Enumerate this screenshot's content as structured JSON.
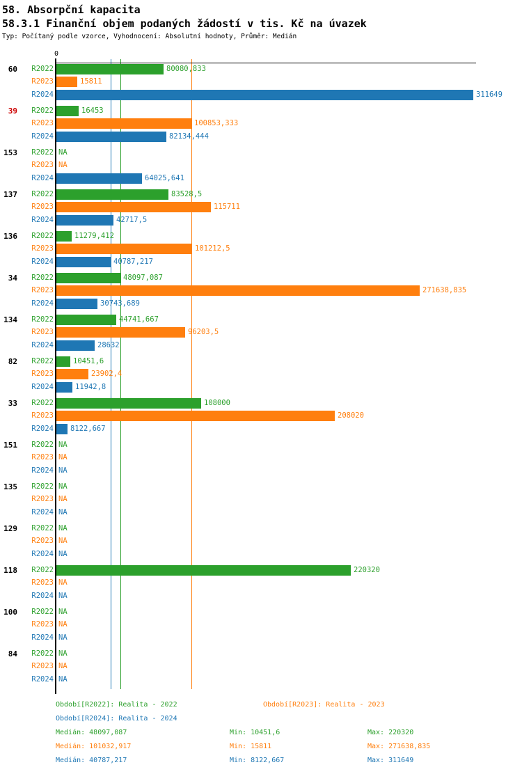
{
  "title": "58. Absorpční kapacita",
  "subtitle": "58.3.1 Finanční objem podaných žádostí v tis. Kč na úvazek",
  "meta": "Typ: Počítaný podle vzorce, Vyhodnocení: Absolutní hodnoty, Průměr: Medián",
  "colors": {
    "r2022": "#2CA02C",
    "r2023": "#FF7F0E",
    "r2024": "#1F77B4",
    "axis": "#000000",
    "highlight_category": "#CC0000",
    "category": "#000000"
  },
  "chart_data": {
    "type": "bar",
    "orientation": "horizontal",
    "x_axis": {
      "origin_label": "0",
      "min_value": 0,
      "max_value": 311649,
      "grid": false
    },
    "series": [
      {
        "name": "R2022",
        "color": "#2CA02C",
        "period_label": "Realita - 2022"
      },
      {
        "name": "R2023",
        "color": "#FF7F0E",
        "period_label": "Realita - 2023"
      },
      {
        "name": "R2024",
        "color": "#1F77B4",
        "period_label": "Realita - 2024"
      }
    ],
    "reference_lines": [
      {
        "series": "R2024",
        "stat": "Medián",
        "value": 40787.217,
        "color": "#1F77B4"
      },
      {
        "series": "R2022",
        "stat": "Medián",
        "value": 48097.087,
        "color": "#2CA02C"
      },
      {
        "series": "R2023",
        "stat": "Medián",
        "value": 101032.917,
        "color": "#FF7F0E"
      }
    ],
    "na_text": "NA",
    "groups": [
      {
        "category": "60",
        "highlight": false,
        "values": [
          80080.833,
          15811,
          311649
        ],
        "labels": [
          "80080,833",
          "15811",
          "311649"
        ]
      },
      {
        "category": "39",
        "highlight": true,
        "values": [
          16453,
          100853.333,
          82134.444
        ],
        "labels": [
          "16453",
          "100853,333",
          "82134,444"
        ]
      },
      {
        "category": "153",
        "highlight": false,
        "values": [
          null,
          null,
          64025.641
        ],
        "labels": [
          "NA",
          "NA",
          "64025,641"
        ]
      },
      {
        "category": "137",
        "highlight": false,
        "values": [
          83528.5,
          115711,
          42717.5
        ],
        "labels": [
          "83528,5",
          "115711",
          "42717,5"
        ]
      },
      {
        "category": "136",
        "highlight": false,
        "values": [
          11279.412,
          101212.5,
          40787.217
        ],
        "labels": [
          "11279,412",
          "101212,5",
          "40787,217"
        ]
      },
      {
        "category": "34",
        "highlight": false,
        "values": [
          48097.087,
          271638.835,
          30743.689
        ],
        "labels": [
          "48097,087",
          "271638,835",
          "30743,689"
        ]
      },
      {
        "category": "134",
        "highlight": false,
        "values": [
          44741.667,
          96203.5,
          28632
        ],
        "labels": [
          "44741,667",
          "96203,5",
          "28632"
        ]
      },
      {
        "category": "82",
        "highlight": false,
        "values": [
          10451.6,
          23902.4,
          11942.8
        ],
        "labels": [
          "10451,6",
          "23902,4",
          "11942,8"
        ]
      },
      {
        "category": "33",
        "highlight": false,
        "values": [
          108000,
          208020,
          8122.667
        ],
        "labels": [
          "108000",
          "208020",
          "8122,667"
        ]
      },
      {
        "category": "151",
        "highlight": false,
        "values": [
          null,
          null,
          null
        ],
        "labels": [
          "NA",
          "NA",
          "NA"
        ]
      },
      {
        "category": "135",
        "highlight": false,
        "values": [
          null,
          null,
          null
        ],
        "labels": [
          "NA",
          "NA",
          "NA"
        ]
      },
      {
        "category": "129",
        "highlight": false,
        "values": [
          null,
          null,
          null
        ],
        "labels": [
          "NA",
          "NA",
          "NA"
        ]
      },
      {
        "category": "118",
        "highlight": false,
        "values": [
          220320,
          null,
          null
        ],
        "labels": [
          "220320",
          "NA",
          "NA"
        ]
      },
      {
        "category": "100",
        "highlight": false,
        "values": [
          null,
          null,
          null
        ],
        "labels": [
          "NA",
          "NA",
          "NA"
        ]
      },
      {
        "category": "84",
        "highlight": false,
        "values": [
          null,
          null,
          null
        ],
        "labels": [
          "NA",
          "NA",
          "NA"
        ]
      }
    ]
  },
  "legend": {
    "periods": [
      {
        "label": "Období[R2022]: Realita - 2022",
        "color": "#2CA02C"
      },
      {
        "label": "Období[R2023]: Realita - 2023",
        "color": "#FF7F0E"
      },
      {
        "label": "Období[R2024]: Realita - 2024",
        "color": "#1F77B4"
      }
    ],
    "stats": [
      {
        "color": "#2CA02C",
        "median": "Medián: 48097,087",
        "min": "Min: 10451,6",
        "max": "Max: 220320"
      },
      {
        "color": "#FF7F0E",
        "median": "Medián: 101032,917",
        "min": "Min: 15811",
        "max": "Max: 271638,835"
      },
      {
        "color": "#1F77B4",
        "median": "Medián: 40787,217",
        "min": "Min: 8122,667",
        "max": "Max: 311649"
      }
    ]
  }
}
